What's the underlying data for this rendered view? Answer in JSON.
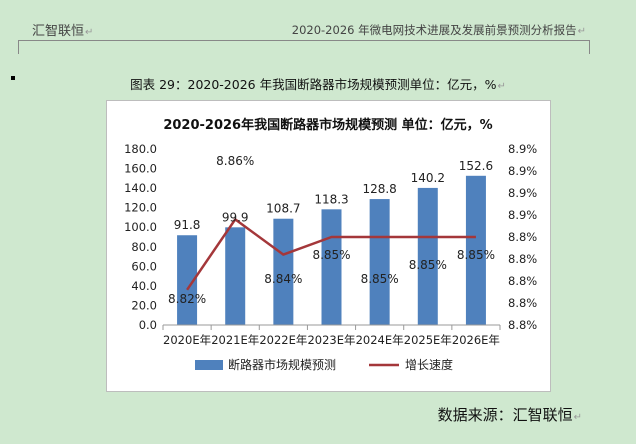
{
  "header": {
    "left": "汇智联恒",
    "right": "2020-2026 年微电网技术进展及发展前景预测分析报告"
  },
  "caption": "图表 29：2020-2026 年我国断路器市场规模预测单位：亿元，%",
  "source": "数据来源：汇智联恒",
  "colors": {
    "bar": "#4f81bd",
    "line": "#a4373a"
  },
  "chart_data": {
    "type": "bar",
    "title": "2020-2026年我国断路器市场规模预测 单位：亿元，%",
    "categories": [
      "2020E年",
      "2021E年",
      "2022E年",
      "2023E年",
      "2024E年",
      "2025E年",
      "2026E年"
    ],
    "series": [
      {
        "name": "断路器市场规模预测",
        "type": "bar",
        "axis": "left",
        "values": [
          91.8,
          99.9,
          108.7,
          118.3,
          128.8,
          140.2,
          152.6
        ],
        "labels": [
          "91.8",
          "99.9",
          "108.7",
          "118.3",
          "128.8",
          "140.2",
          "152.6"
        ]
      },
      {
        "name": "增长速度",
        "type": "line",
        "axis": "right",
        "values": [
          8.82,
          8.86,
          8.84,
          8.85,
          8.85,
          8.85,
          8.85
        ],
        "labels": [
          "8.82%",
          "8.86%",
          "8.84%",
          "8.85%",
          "8.85%",
          "8.85%",
          "8.85%"
        ]
      }
    ],
    "y_left": {
      "ylim": [
        0,
        180
      ],
      "ticks": [
        "0.0",
        "20.0",
        "40.0",
        "60.0",
        "80.0",
        "100.0",
        "120.0",
        "140.0",
        "160.0",
        "180.0"
      ]
    },
    "y_right": {
      "ylim": [
        8.8,
        8.9
      ],
      "ticks": [
        "8.8%",
        "8.8%",
        "8.8%",
        "8.8%",
        "8.8%",
        "8.9%",
        "8.9%",
        "8.9%",
        "8.9%"
      ]
    },
    "legend": "bottom",
    "grid": false
  }
}
